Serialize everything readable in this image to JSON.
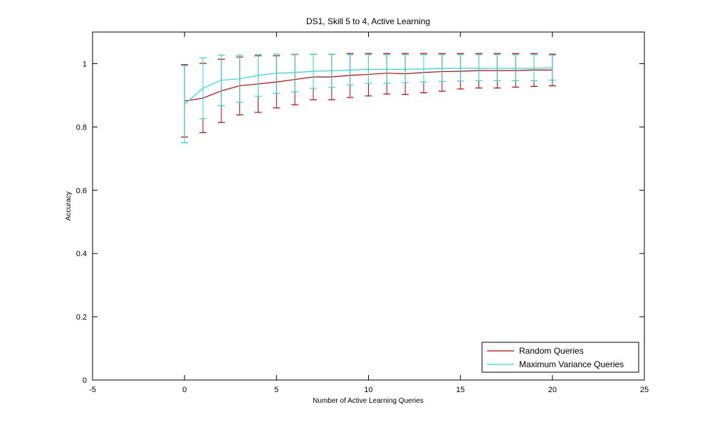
{
  "chart_data": {
    "type": "line",
    "title": "DS1, Skill 5 to 4, Active Learning",
    "xlabel": "Number of Active Learning Queries",
    "ylabel": "Accuracy",
    "xlim": [
      -5,
      25
    ],
    "ylim": [
      0,
      1.1
    ],
    "xticks": [
      -5,
      0,
      5,
      10,
      15,
      20,
      25
    ],
    "yticks": [
      0,
      0.2,
      0.4,
      0.6,
      0.8,
      1
    ],
    "xtick_labels": [
      "-5",
      "0",
      "5",
      "10",
      "15",
      "20",
      "25"
    ],
    "ytick_labels": [
      "0",
      "0.2",
      "0.4",
      "0.6",
      "0.8",
      "1"
    ],
    "grid": false,
    "legend_position": "bottom-right",
    "x": [
      0,
      1,
      2,
      3,
      4,
      5,
      6,
      7,
      8,
      9,
      10,
      11,
      12,
      13,
      14,
      15,
      16,
      17,
      18,
      19,
      20
    ],
    "series": [
      {
        "name": "Random Queries",
        "color": "#cc0000",
        "values": [
          0.882,
          0.891,
          0.914,
          0.93,
          0.936,
          0.942,
          0.95,
          0.958,
          0.958,
          0.963,
          0.966,
          0.97,
          0.968,
          0.972,
          0.975,
          0.976,
          0.978,
          0.978,
          0.978,
          0.98,
          0.98
        ],
        "lower": [
          0.768,
          0.782,
          0.814,
          0.838,
          0.846,
          0.86,
          0.87,
          0.886,
          0.886,
          0.893,
          0.898,
          0.904,
          0.903,
          0.908,
          0.913,
          0.92,
          0.923,
          0.923,
          0.926,
          0.928,
          0.93
        ],
        "upper": [
          0.997,
          1.001,
          1.014,
          1.021,
          1.025,
          1.025,
          1.029,
          1.03,
          1.03,
          1.032,
          1.032,
          1.032,
          1.032,
          1.032,
          1.032,
          1.032,
          1.032,
          1.032,
          1.032,
          1.032,
          1.03
        ]
      },
      {
        "name": "Maximum Variance Queries",
        "color": "#22dddd",
        "values": [
          0.872,
          0.922,
          0.948,
          0.952,
          0.963,
          0.97,
          0.972,
          0.976,
          0.977,
          0.98,
          0.982,
          0.982,
          0.982,
          0.983,
          0.985,
          0.985,
          0.985,
          0.985,
          0.985,
          0.985,
          0.987
        ],
        "lower": [
          0.75,
          0.826,
          0.867,
          0.878,
          0.897,
          0.906,
          0.911,
          0.922,
          0.925,
          0.933,
          0.938,
          0.938,
          0.94,
          0.942,
          0.944,
          0.945,
          0.946,
          0.946,
          0.946,
          0.946,
          0.948
        ],
        "upper": [
          0.994,
          1.018,
          1.027,
          1.027,
          1.029,
          1.03,
          1.03,
          1.03,
          1.03,
          1.028,
          1.029,
          1.029,
          1.029,
          1.029,
          1.029,
          1.029,
          1.029,
          1.029,
          1.029,
          1.029,
          1.027
        ]
      }
    ]
  }
}
